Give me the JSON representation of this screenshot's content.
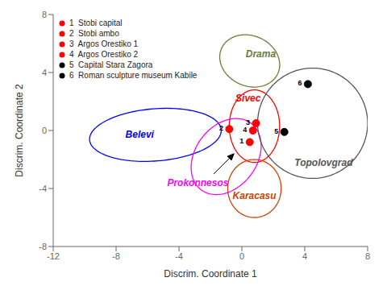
{
  "chart_data": {
    "type": "scatter",
    "xlabel": "Discrim. Coordinate 1",
    "ylabel": "Discrim. Coordinate 2",
    "xlim": [
      -12,
      8
    ],
    "ylim": [
      -8,
      8
    ],
    "xticks": [
      -12,
      -8,
      -4,
      0,
      4,
      8
    ],
    "yticks": [
      -8,
      -4,
      0,
      4,
      8
    ],
    "grid": false,
    "legend": "upper left",
    "series": [
      {
        "name": "1  Stobi capital",
        "label": "1",
        "color": "red",
        "x": [
          0.5
        ],
        "y": [
          -0.8
        ]
      },
      {
        "name": "2  Stobi ambo",
        "label": "2",
        "color": "red",
        "x": [
          -0.8
        ],
        "y": [
          0.1
        ]
      },
      {
        "name": "3  Argos Orestiko 1",
        "label": "3",
        "color": "red",
        "x": [
          0.9
        ],
        "y": [
          0.5
        ]
      },
      {
        "name": "4  Argos Orestiko 2",
        "label": "4",
        "color": "red",
        "x": [
          0.7
        ],
        "y": [
          0.0
        ]
      },
      {
        "name": "5  Capital Stara Zagora",
        "label": "5",
        "color": "black",
        "x": [
          2.7
        ],
        "y": [
          -0.1
        ]
      },
      {
        "name": "6  Roman sculpture museum Kabile",
        "label": "6",
        "color": "black",
        "x": [
          4.2
        ],
        "y": [
          3.2
        ]
      }
    ],
    "ellipses": [
      {
        "cx": -5.5,
        "cy": -0.3,
        "rx": 4.2,
        "ry": 1.8,
        "angle": 5,
        "color": "blue",
        "label": "Belevi",
        "label_x": -6.5,
        "label_y": -0.3
      },
      {
        "cx": 0.8,
        "cy": 0.3,
        "rx": 1.6,
        "ry": 2.5,
        "angle": 0,
        "color": "red",
        "label": "Sivec",
        "label_x": 0.4,
        "label_y": 2.2
      },
      {
        "cx": 0.8,
        "cy": -4.0,
        "rx": 1.7,
        "ry": 2.0,
        "angle": 0,
        "color": "#cc4400",
        "label": "Karacasu",
        "label_x": 0.8,
        "label_y": -4.5
      },
      {
        "cx": -1.0,
        "cy": -1.8,
        "rx": 2.0,
        "ry": 2.8,
        "angle": -30,
        "color": "magenta",
        "label": "Prokonnesos",
        "label_x": -2.8,
        "label_y": -3.6
      },
      {
        "cx": 0.5,
        "cy": 4.8,
        "rx": 2.0,
        "ry": 1.7,
        "angle": -35,
        "color": "#6B7B3A",
        "label": "Drama",
        "label_x": 1.2,
        "label_y": 5.3
      },
      {
        "cx": 4.5,
        "cy": 0.5,
        "rx": 3.5,
        "ry": 3.8,
        "angle": 0,
        "color": "#555555",
        "label": "Topolovgrad",
        "label_x": 5.2,
        "label_y": -2.2
      }
    ],
    "arrow": {
      "x_start": -1.8,
      "y_start": -3.0,
      "x_end": -0.5,
      "y_end": -1.6
    }
  }
}
